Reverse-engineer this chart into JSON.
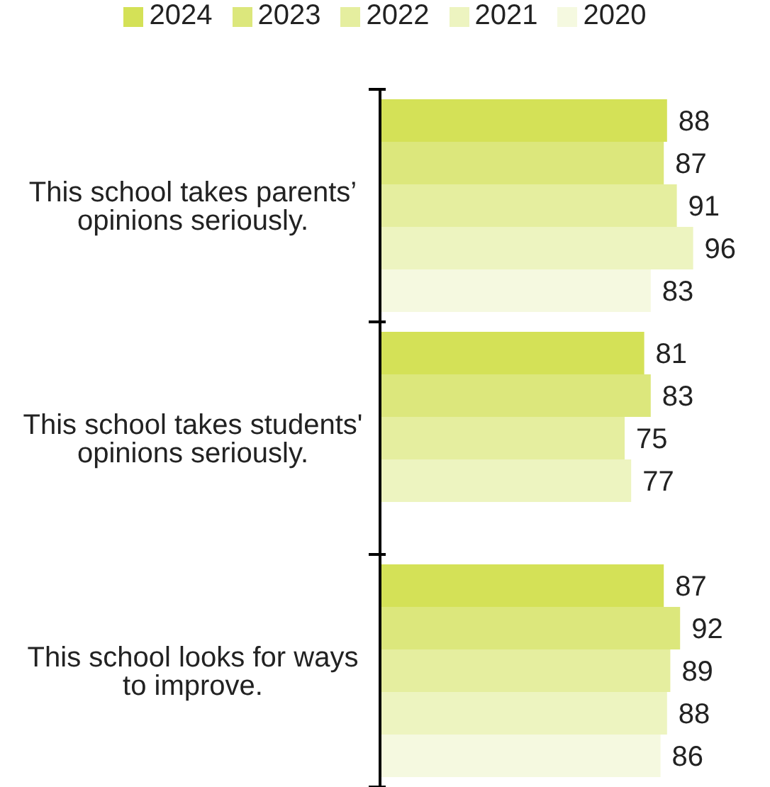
{
  "chart_data": {
    "type": "bar",
    "orientation": "horizontal",
    "categories": [
      "This school takes parents’ opinions seriously.",
      "This school takes students' opinions seriously.",
      "This school looks for ways to improve."
    ],
    "series": [
      {
        "name": "2024",
        "color": "#d4e157",
        "values": [
          88,
          81,
          87
        ]
      },
      {
        "name": "2023",
        "color": "#dce77c",
        "values": [
          87,
          83,
          92
        ]
      },
      {
        "name": "2022",
        "color": "#e5ee9f",
        "values": [
          91,
          75,
          89
        ]
      },
      {
        "name": "2021",
        "color": "#edf4c0",
        "values": [
          96,
          77,
          88
        ]
      },
      {
        "name": "2020",
        "color": "#f5f9e0",
        "values": [
          83,
          null,
          86
        ]
      }
    ],
    "data_labels": true,
    "legend": "top",
    "tick_labels": "y"
  }
}
